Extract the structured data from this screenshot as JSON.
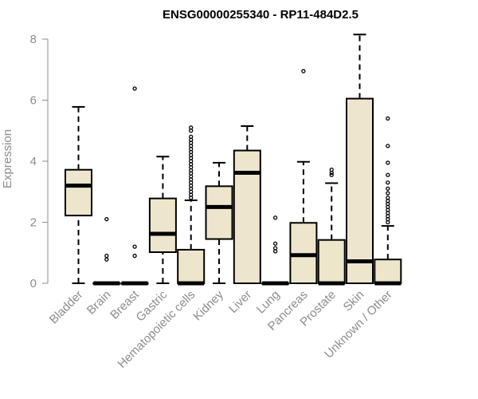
{
  "chart_data": {
    "type": "boxplot",
    "title": "ENSG00000255340 - RP11-484D2.5",
    "xlabel": "",
    "ylabel": "Expression",
    "ylim": [
      0,
      8
    ],
    "yticks": [
      "0",
      "2",
      "4",
      "6",
      "8"
    ],
    "grid": false,
    "legend": "none",
    "box_fill": "#ede6cc",
    "box_stroke": "#000000",
    "categories": [
      "Bladder",
      "Brain",
      "Breast",
      "Gastric",
      "Hematopoietic cells",
      "Kidney",
      "Liver",
      "Lung",
      "Pancreas",
      "Prostate",
      "Skin",
      "Unknown / Other"
    ],
    "boxes": [
      {
        "category": "Bladder",
        "whisker_low": 0.0,
        "q1": 2.22,
        "median": 3.2,
        "q3": 3.72,
        "whisker_high": 5.78,
        "outliers": []
      },
      {
        "category": "Brain",
        "whisker_low": 0.0,
        "q1": 0.0,
        "median": 0.0,
        "q3": 0.0,
        "whisker_high": 0.0,
        "outliers": [
          0.78,
          0.9,
          2.1
        ]
      },
      {
        "category": "Breast",
        "whisker_low": 0.0,
        "q1": 0.0,
        "median": 0.0,
        "q3": 0.0,
        "whisker_high": 0.0,
        "outliers": [
          0.9,
          1.2,
          6.38
        ]
      },
      {
        "category": "Gastric",
        "whisker_low": 0.0,
        "q1": 1.02,
        "median": 1.62,
        "q3": 2.78,
        "whisker_high": 4.15,
        "outliers": []
      },
      {
        "category": "Hematopoietic cells",
        "whisker_low": 0.0,
        "q1": 0.0,
        "median": 0.0,
        "q3": 1.1,
        "whisker_high": 2.72,
        "outliers": [
          2.8,
          2.9,
          3.0,
          3.1,
          3.2,
          3.3,
          3.4,
          3.5,
          3.6,
          3.7,
          3.8,
          3.9,
          4.0,
          4.1,
          4.2,
          4.3,
          4.4,
          4.5,
          4.6,
          4.7,
          4.8,
          5.0,
          5.1
        ]
      },
      {
        "category": "Kidney",
        "whisker_low": 0.0,
        "q1": 1.45,
        "median": 2.5,
        "q3": 3.18,
        "whisker_high": 3.95,
        "outliers": []
      },
      {
        "category": "Liver",
        "whisker_low": 0.0,
        "q1": 0.0,
        "median": 3.62,
        "q3": 4.35,
        "whisker_high": 5.15,
        "outliers": []
      },
      {
        "category": "Lung",
        "whisker_low": 0.0,
        "q1": 0.0,
        "median": 0.0,
        "q3": 0.0,
        "whisker_high": 0.0,
        "outliers": [
          1.05,
          1.15,
          1.3,
          2.15
        ]
      },
      {
        "category": "Pancreas",
        "whisker_low": 0.0,
        "q1": 0.0,
        "median": 0.92,
        "q3": 1.98,
        "whisker_high": 3.98,
        "outliers": [
          6.95
        ]
      },
      {
        "category": "Prostate",
        "whisker_low": 0.0,
        "q1": 0.0,
        "median": 0.0,
        "q3": 1.42,
        "whisker_high": 3.28,
        "outliers": [
          3.55,
          3.62,
          3.72
        ]
      },
      {
        "category": "Skin",
        "whisker_low": 0.0,
        "q1": 0.0,
        "median": 0.72,
        "q3": 6.05,
        "whisker_high": 8.15,
        "outliers": []
      },
      {
        "category": "Unknown / Other",
        "whisker_low": 0.0,
        "q1": 0.0,
        "median": 0.0,
        "q3": 0.78,
        "whisker_high": 1.88,
        "outliers": [
          2.0,
          2.1,
          2.2,
          2.3,
          2.4,
          2.5,
          2.6,
          2.7,
          2.8,
          2.95,
          3.1,
          3.3,
          3.55,
          3.95,
          4.5,
          5.4
        ]
      }
    ]
  }
}
